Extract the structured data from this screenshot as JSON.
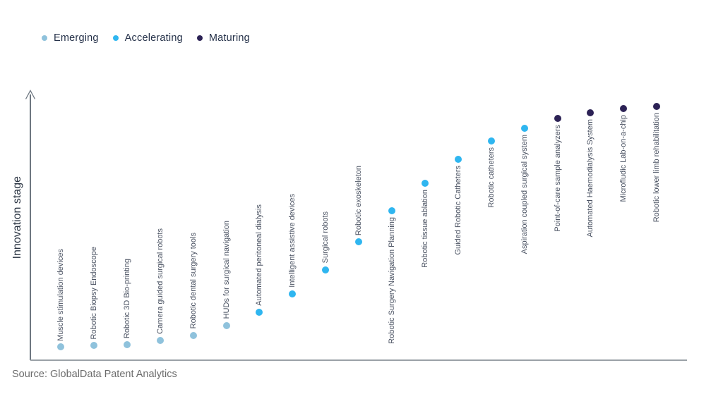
{
  "legend": {
    "items": [
      {
        "label": "Emerging",
        "stage_key": "emerging"
      },
      {
        "label": "Accelerating",
        "stage_key": "accelerating"
      },
      {
        "label": "Maturing",
        "stage_key": "maturing"
      }
    ]
  },
  "colors": {
    "emerging": "#8fc2dc",
    "accelerating": "#2fb6f0",
    "maturing": "#2c2255",
    "axis": "#6d7680",
    "baseline": "#9aa1a7",
    "item_label_text": "#4a5262",
    "legend_text": "#26324a",
    "source_text": "#6c6c6c"
  },
  "source": "Source: GlobalData Patent Analytics",
  "chart_data": {
    "type": "scatter",
    "title": "",
    "ylabel": "Innovation stage",
    "xlabel": "",
    "ylim": [
      0,
      100
    ],
    "grid": false,
    "legend_position": "top-left",
    "y_axis_style": "arrow-no-ticks",
    "items": [
      {
        "label": "Muscle stimulation devices",
        "stage": "Emerging",
        "stage_key": "emerging",
        "value": 4.9,
        "label_position": "above"
      },
      {
        "label": "Robotic Biopsy Endoscope",
        "stage": "Emerging",
        "stage_key": "emerging",
        "value": 5.4,
        "label_position": "above"
      },
      {
        "label": "Robotic 3D Bio-printing",
        "stage": "Emerging",
        "stage_key": "emerging",
        "value": 5.9,
        "label_position": "above"
      },
      {
        "label": "Camera guided surgical robots",
        "stage": "Emerging",
        "stage_key": "emerging",
        "value": 7.5,
        "label_position": "above"
      },
      {
        "label": "Robotic dental surgery tools",
        "stage": "Emerging",
        "stage_key": "emerging",
        "value": 9.4,
        "label_position": "above"
      },
      {
        "label": "HUDs for surgical navigation",
        "stage": "Emerging",
        "stage_key": "emerging",
        "value": 13.2,
        "label_position": "above"
      },
      {
        "label": "Automated peritoneal dialysis",
        "stage": "Accelerating",
        "stage_key": "accelerating",
        "value": 18.3,
        "label_position": "above"
      },
      {
        "label": "Intelligent assistive devices",
        "stage": "Accelerating",
        "stage_key": "accelerating",
        "value": 25.3,
        "label_position": "above"
      },
      {
        "label": "Surgical robots",
        "stage": "Accelerating",
        "stage_key": "accelerating",
        "value": 34.5,
        "label_position": "above"
      },
      {
        "label": "Robotic exoskeleton",
        "stage": "Accelerating",
        "stage_key": "accelerating",
        "value": 45.3,
        "label_position": "above"
      },
      {
        "label": "Robotic Surgery Navigation Planning",
        "stage": "Accelerating",
        "stage_key": "accelerating",
        "value": 57.1,
        "label_position": "below"
      },
      {
        "label": "Robotic tissue ablation",
        "stage": "Accelerating",
        "stage_key": "accelerating",
        "value": 67.7,
        "label_position": "below"
      },
      {
        "label": "Guided Robotic Catheters",
        "stage": "Accelerating",
        "stage_key": "accelerating",
        "value": 76.8,
        "label_position": "below"
      },
      {
        "label": "Robotic catheters",
        "stage": "Accelerating",
        "stage_key": "accelerating",
        "value": 83.8,
        "label_position": "below"
      },
      {
        "label": "Aspiration coupled surgical system",
        "stage": "Accelerating",
        "stage_key": "accelerating",
        "value": 88.7,
        "label_position": "below"
      },
      {
        "label": "Point-of-care sample analyzers",
        "stage": "Maturing",
        "stage_key": "maturing",
        "value": 92.5,
        "label_position": "below"
      },
      {
        "label": "Automated Haemodialysis System",
        "stage": "Maturing",
        "stage_key": "maturing",
        "value": 94.6,
        "label_position": "below"
      },
      {
        "label": "Microfludic Lab-on-a-chip",
        "stage": "Maturing",
        "stage_key": "maturing",
        "value": 96.2,
        "label_position": "below"
      },
      {
        "label": "Robotic lower limb rehabilitation",
        "stage": "Maturing",
        "stage_key": "maturing",
        "value": 97.0,
        "label_position": "below"
      }
    ]
  }
}
